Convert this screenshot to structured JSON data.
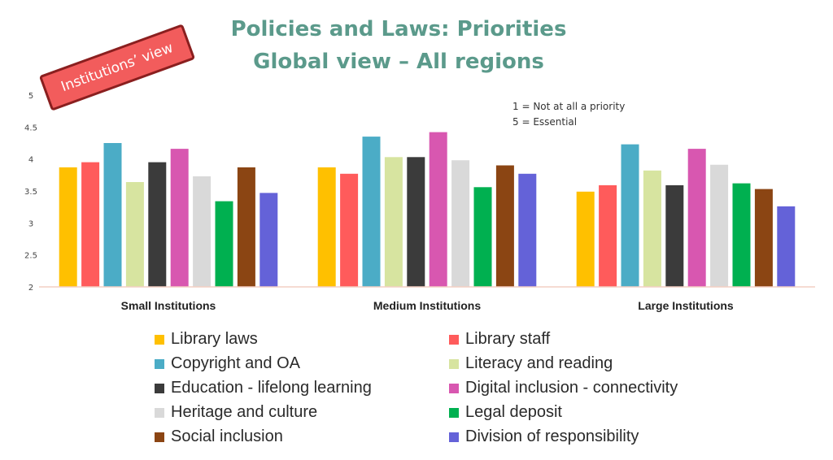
{
  "title": {
    "line1": "Policies and Laws: Priorities",
    "line2": "Global view – All regions"
  },
  "badge": "Institutions’ view",
  "annotation": {
    "line1": "1 = Not at all a priority",
    "line2": "5 = Essential"
  },
  "chart_data": {
    "type": "bar",
    "categories": [
      "Small Institutions",
      "Medium Institutions",
      "Large Institutions"
    ],
    "ylim": [
      2,
      5
    ],
    "yticks": [
      2,
      2.5,
      3,
      3.5,
      4,
      4.5,
      5
    ],
    "grid": false,
    "legend_position": "bottom",
    "series": [
      {
        "name": "Library laws",
        "color": "#ffc000",
        "values": [
          3.87,
          3.87,
          3.49
        ]
      },
      {
        "name": "Library staff",
        "color": "#ff5b5b",
        "values": [
          3.95,
          3.77,
          3.59
        ]
      },
      {
        "name": "Copyright and OA",
        "color": "#4bacc6",
        "values": [
          4.25,
          4.35,
          4.23
        ]
      },
      {
        "name": "Literacy and reading",
        "color": "#d7e4a0",
        "values": [
          3.64,
          4.03,
          3.82
        ]
      },
      {
        "name": "Education - lifelong learning",
        "color": "#3b3b3b",
        "values": [
          3.95,
          4.03,
          3.59
        ]
      },
      {
        "name": "Digital inclusion - connectivity",
        "color": "#d857b0",
        "values": [
          4.16,
          4.42,
          4.16
        ]
      },
      {
        "name": "Heritage and culture",
        "color": "#d9d9d9",
        "values": [
          3.73,
          3.98,
          3.91
        ]
      },
      {
        "name": "Legal deposit",
        "color": "#00b050",
        "values": [
          3.34,
          3.56,
          3.62
        ]
      },
      {
        "name": "Social inclusion",
        "color": "#8b4513",
        "values": [
          3.87,
          3.9,
          3.53
        ]
      },
      {
        "name": "Division of responsibility",
        "color": "#6462d8",
        "values": [
          3.47,
          3.77,
          3.26
        ]
      }
    ]
  }
}
